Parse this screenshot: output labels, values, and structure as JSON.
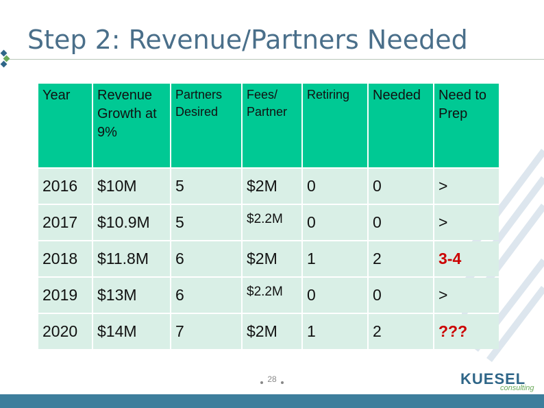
{
  "title": "Step 2: Revenue/Partners Needed",
  "table": {
    "headers": [
      "Year",
      "Revenue Growth at 9%",
      "Partners Desired",
      "Fees/ Partner",
      "Retiring",
      "Needed",
      "Need to Prep"
    ],
    "rows": [
      [
        "2016",
        "$10M",
        "5",
        "$2M",
        "0",
        "0",
        ">"
      ],
      [
        "2017",
        "$10.9M",
        "5",
        "$2.2M",
        "0",
        "0",
        ">"
      ],
      [
        "2018",
        "$11.8M",
        "6",
        "$2M",
        "1",
        "2",
        "3-4"
      ],
      [
        "2019",
        "$13M",
        "6",
        "$2.2M",
        "0",
        "0",
        ">"
      ],
      [
        "2020",
        "$14M",
        "7",
        "$2M",
        "1",
        "2",
        "???"
      ]
    ]
  },
  "footer": {
    "page_number": "28",
    "logo": "KUESEL",
    "logo_sub": "consulting"
  },
  "colors": {
    "header_fill": "#00c994",
    "row_fill": "#d9efe6",
    "highlight_text": "#cc0000",
    "title_text": "#4a6f8a",
    "footer_bar": "#3d7e9c"
  }
}
